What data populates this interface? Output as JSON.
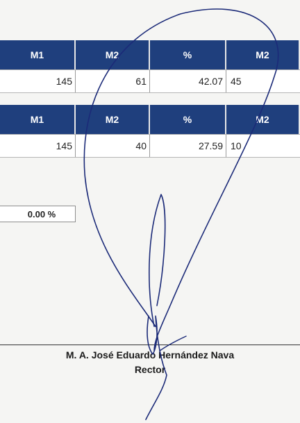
{
  "table1": {
    "headers": [
      "M1",
      "M2",
      "%",
      "M2"
    ],
    "row": [
      "145",
      "61",
      "42.07",
      "45"
    ]
  },
  "table2": {
    "headers": [
      "M1",
      "M2",
      "%",
      "M2"
    ],
    "row": [
      "145",
      "40",
      "27.59",
      "10"
    ]
  },
  "percent_box": "0.00 %",
  "signatory": {
    "name": "M. A. José Eduardo Hernández Nava",
    "title": "Rector"
  },
  "colors": {
    "header_bg": "#1f3f7d",
    "signature_ink": "#1b2a78"
  }
}
